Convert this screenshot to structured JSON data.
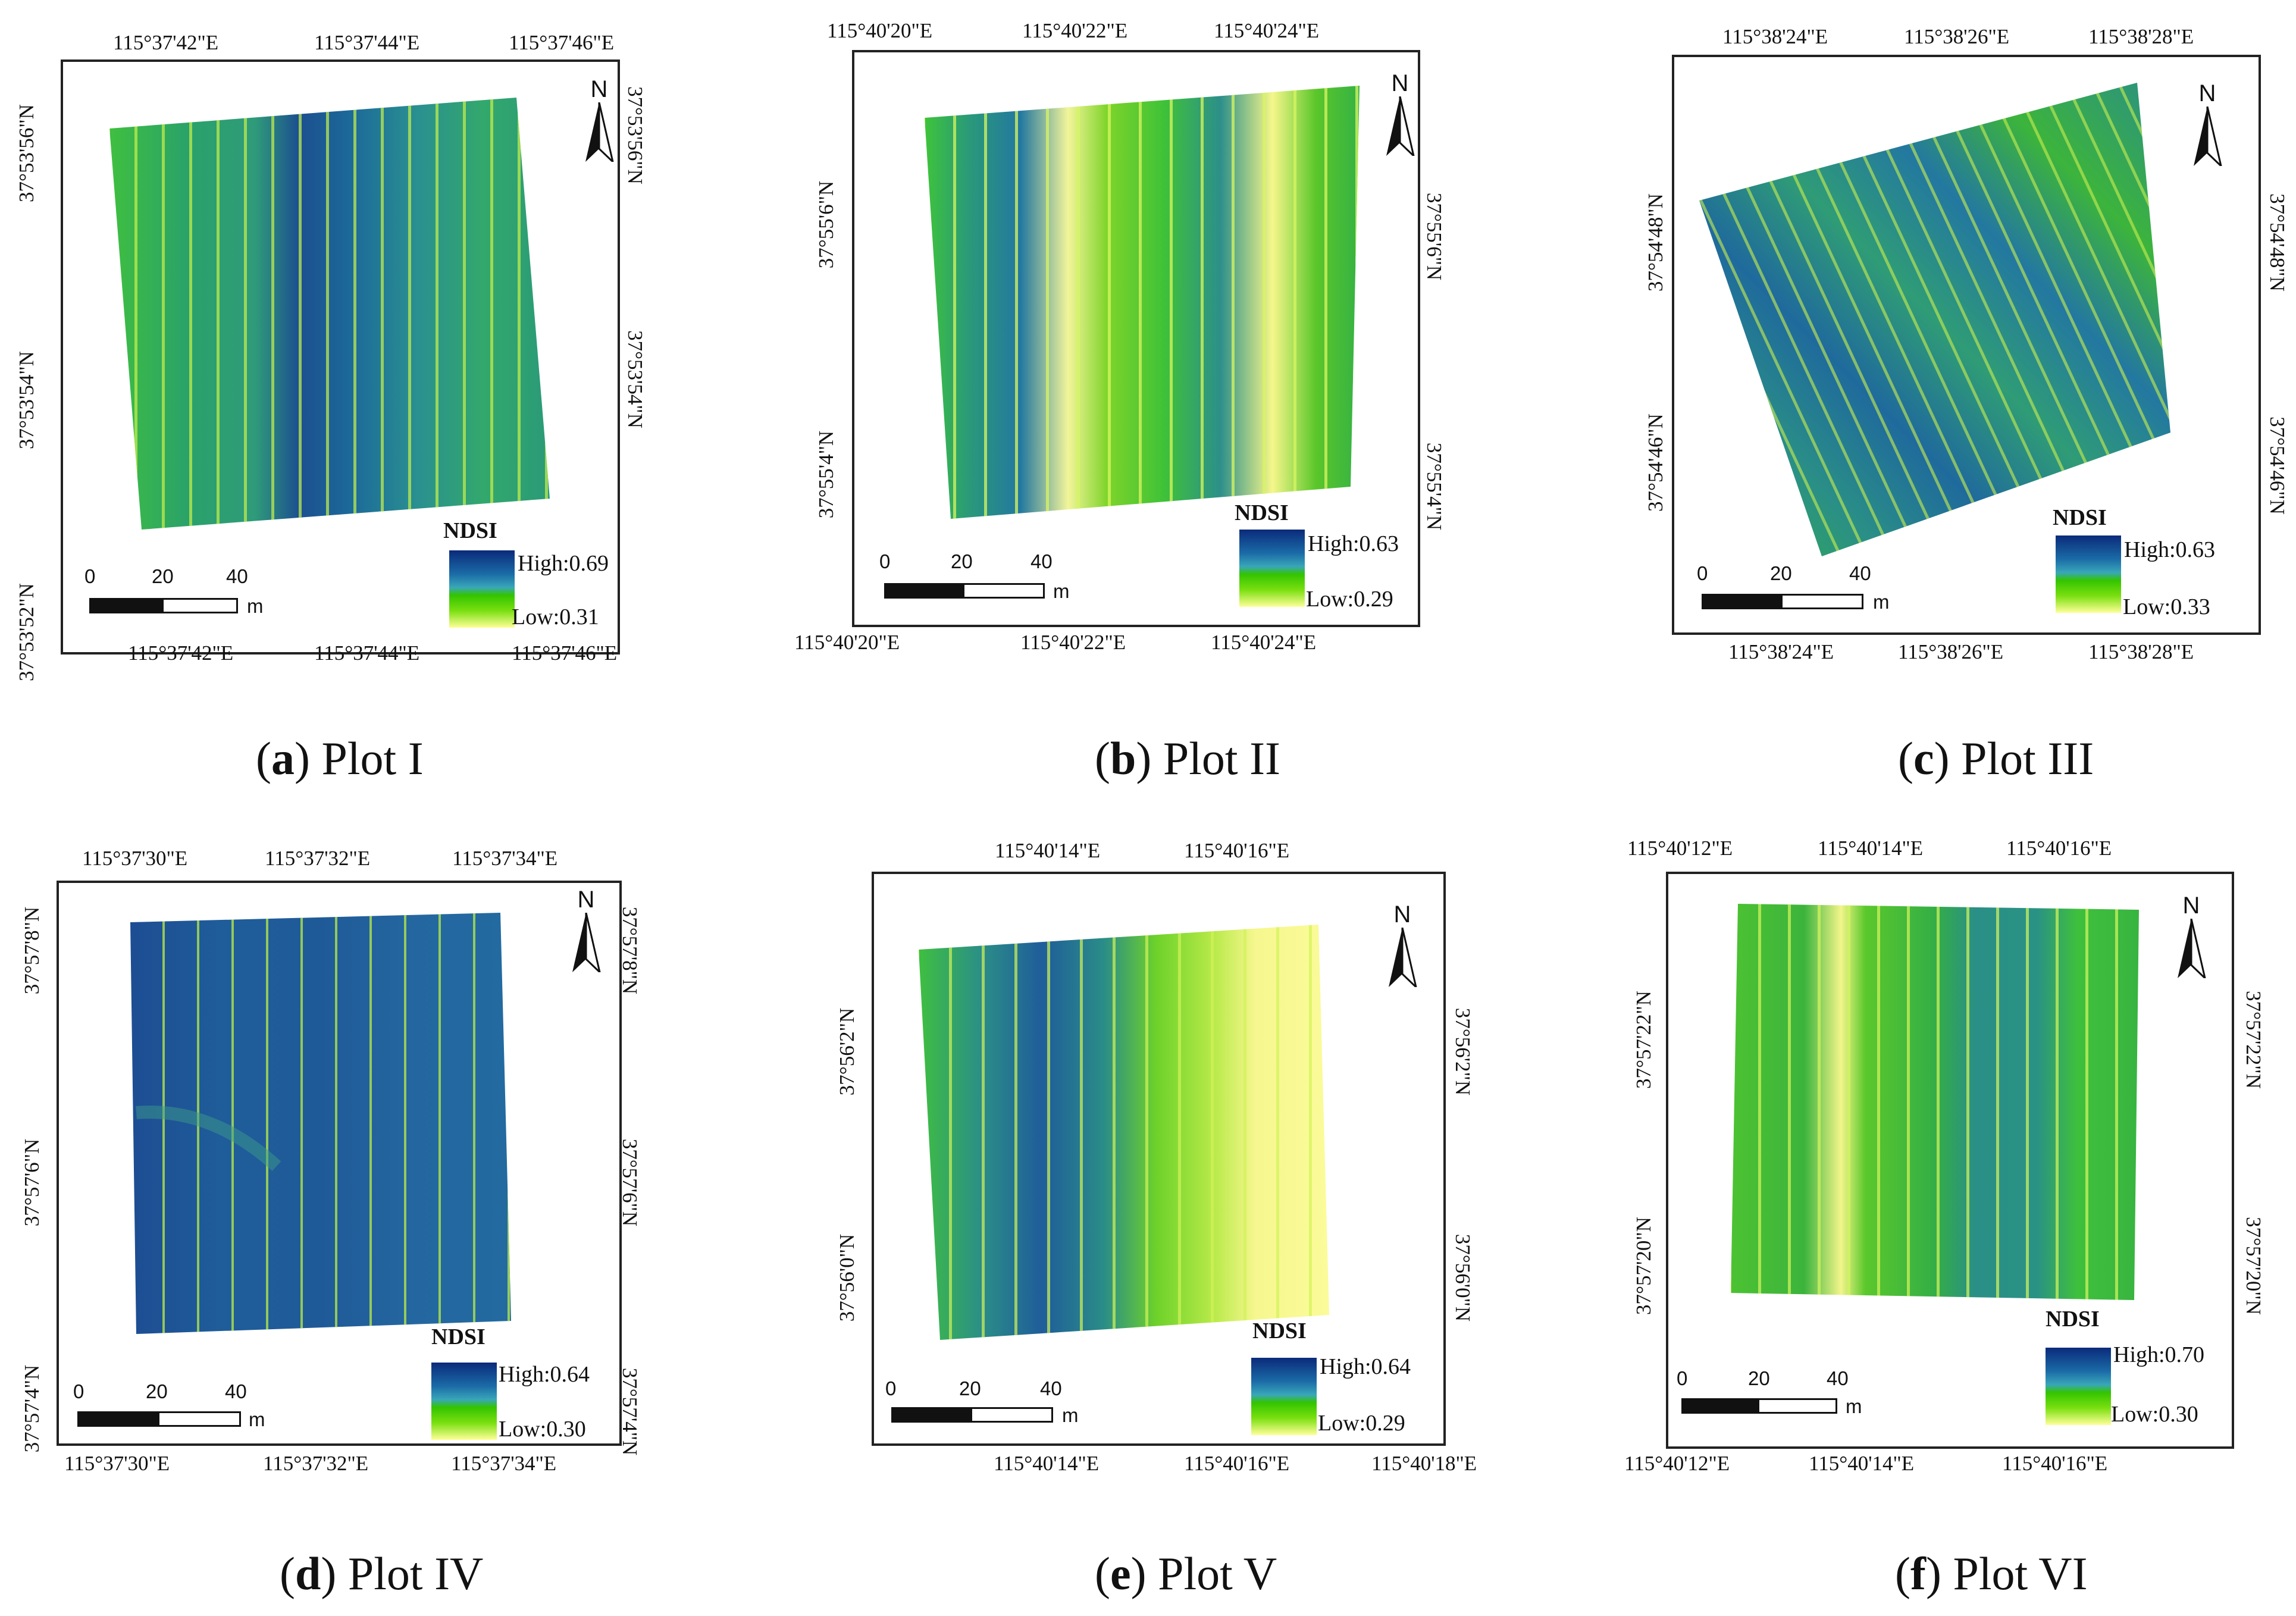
{
  "legend_title": "NDSI",
  "scale_unit": "m",
  "scale_ticks": [
    "0",
    "20",
    "40"
  ],
  "north_label": "N",
  "colors": {
    "ndsi_high": "#0b2a7a",
    "ndsi_mid": "#1a6aa6",
    "ndsi_green": "#33c400",
    "ndsi_low": "#ffff99",
    "frame": "#222222"
  },
  "panels": [
    {
      "letter": "a",
      "name": "Plot I",
      "high": "High:0.69",
      "low": "Low:0.31",
      "top_lon": [
        "115°37'42\"E",
        "115°37'44\"E",
        "115°37'46\"E"
      ],
      "bottom_lon": [
        "115°37'42\"E",
        "115°37'44\"E",
        "115°37'46\"E"
      ],
      "left_lat": [
        "37°53'56\"N",
        "37°53'54\"N",
        "37°53'52\"N"
      ],
      "right_lat": [
        "37°53'56\"N",
        "37°53'54\"N"
      ]
    },
    {
      "letter": "b",
      "name": "Plot II",
      "high": "High:0.63",
      "low": "Low:0.29",
      "top_lon": [
        "115°40'20\"E",
        "115°40'22\"E",
        "115°40'24\"E"
      ],
      "bottom_lon": [
        "115°40'20\"E",
        "115°40'22\"E",
        "115°40'24\"E"
      ],
      "left_lat": [
        "37°55'6\"N",
        "37°55'4\"N"
      ],
      "right_lat": [
        "37°55'6\"N",
        "37°55'4\"N"
      ]
    },
    {
      "letter": "c",
      "name": "Plot III",
      "high": "High:0.63",
      "low": "Low:0.33",
      "top_lon": [
        "115°38'24\"E",
        "115°38'26\"E",
        "115°38'28\"E"
      ],
      "bottom_lon": [
        "115°38'24\"E",
        "115°38'26\"E",
        "115°38'28\"E"
      ],
      "left_lat": [
        "37°54'48\"N",
        "37°54'46\"N"
      ],
      "right_lat": [
        "37°54'48\"N",
        "37°54'46\"N"
      ]
    },
    {
      "letter": "d",
      "name": "Plot IV",
      "high": "High:0.64",
      "low": "Low:0.30",
      "top_lon": [
        "115°37'30\"E",
        "115°37'32\"E",
        "115°37'34\"E"
      ],
      "bottom_lon": [
        "115°37'30\"E",
        "115°37'32\"E",
        "115°37'34\"E"
      ],
      "left_lat": [
        "37°57'8\"N",
        "37°57'6\"N",
        "37°57'4\"N"
      ],
      "right_lat": [
        "37°57'8\"N",
        "37°57'6\"N",
        "37°57'4\"N"
      ]
    },
    {
      "letter": "e",
      "name": "Plot V",
      "high": "High:0.64",
      "low": "Low:0.29",
      "top_lon": [
        "115°40'14\"E",
        "115°40'16\"E"
      ],
      "bottom_lon": [
        "115°40'14\"E",
        "115°40'16\"E",
        "115°40'18\"E"
      ],
      "left_lat": [
        "37°56'2\"N",
        "37°56'0\"N"
      ],
      "right_lat": [
        "37°56'2\"N",
        "37°56'0\"N"
      ]
    },
    {
      "letter": "f",
      "name": "Plot VI",
      "high": "High:0.70",
      "low": "Low:0.30",
      "top_lon": [
        "115°40'12\"E",
        "115°40'14\"E",
        "115°40'16\"E"
      ],
      "bottom_lon": [
        "115°40'12\"E",
        "115°40'14\"E",
        "115°40'16\"E"
      ],
      "left_lat": [
        "37°57'22\"N",
        "37°57'20\"N"
      ],
      "right_lat": [
        "37°57'22\"N",
        "37°57'20\"N"
      ]
    }
  ]
}
